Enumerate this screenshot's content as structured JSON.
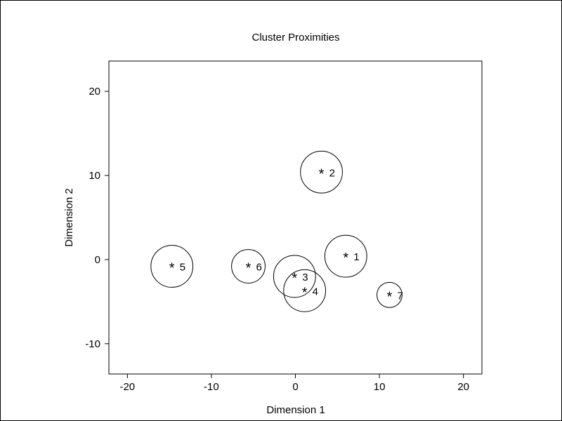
{
  "chart_data": {
    "type": "scatter",
    "title": "Cluster Proximities",
    "xlabel": "Dimension 1",
    "ylabel": "Dimension 2",
    "xlim": [
      -22.2,
      22.2
    ],
    "ylim": [
      -13.6,
      23.6
    ],
    "xticks": [
      -20,
      -10,
      0,
      10,
      20
    ],
    "xtick_labels": [
      "-20",
      "-10",
      "0",
      "10",
      "20"
    ],
    "yticks": [
      -10,
      0,
      10,
      20
    ],
    "ytick_labels": [
      "-10",
      "0",
      "10",
      "20"
    ],
    "grid": false,
    "marker": "*",
    "points": [
      {
        "label": "1",
        "x": 6.0,
        "y": 0.4,
        "radius": 2.5
      },
      {
        "label": "2",
        "x": 3.1,
        "y": 10.4,
        "radius": 2.5
      },
      {
        "label": "3",
        "x": -0.1,
        "y": -2.0,
        "radius": 2.5
      },
      {
        "label": "4",
        "x": 1.1,
        "y": -3.7,
        "radius": 2.5
      },
      {
        "label": "5",
        "x": -14.7,
        "y": -0.8,
        "radius": 2.5
      },
      {
        "label": "6",
        "x": -5.6,
        "y": -0.8,
        "radius": 2.0
      },
      {
        "label": "7",
        "x": 11.2,
        "y": -4.2,
        "radius": 1.5
      }
    ]
  }
}
